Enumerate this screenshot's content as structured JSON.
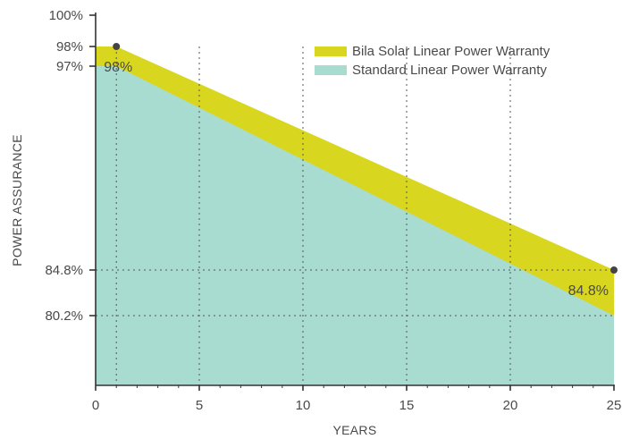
{
  "chart_data": {
    "type": "area",
    "xlabel": "YEARS",
    "ylabel": "POWER ASSURANCE",
    "xlim": [
      0,
      25
    ],
    "ylim": [
      75,
      100
    ],
    "x_ticks": [
      "0",
      "5",
      "10",
      "15",
      "20",
      "25"
    ],
    "y_ticks": [
      {
        "value": 100,
        "label": "100%"
      },
      {
        "value": 98,
        "label": "98%"
      },
      {
        "value": 97,
        "label": "97%"
      },
      {
        "value": 84.8,
        "label": "84.8%"
      },
      {
        "value": 80.2,
        "label": "80.2%"
      }
    ],
    "legend_position": "top-right",
    "series": [
      {
        "name": "Bila Solar Linear Power Warranty",
        "color": "#d9d620",
        "x": [
          0,
          1,
          25
        ],
        "y": [
          98,
          98,
          84.8
        ]
      },
      {
        "name": "Standard Linear Power Warranty",
        "color": "#a8dcd1",
        "x": [
          0,
          1,
          25
        ],
        "y": [
          97,
          97,
          80.2
        ]
      }
    ],
    "markers": [
      {
        "x": 1,
        "y": 98
      },
      {
        "x": 25,
        "y": 84.8
      }
    ],
    "annotations": [
      {
        "text": "98%",
        "x": 1,
        "y": 98
      },
      {
        "text": "84.8%",
        "x": 25,
        "y": 84.8
      }
    ],
    "guide_lines": [
      {
        "axis": "y",
        "value": 84.8
      },
      {
        "axis": "y",
        "value": 80.2
      },
      {
        "axis": "x",
        "value": 1
      },
      {
        "axis": "x",
        "value": 5
      },
      {
        "axis": "x",
        "value": 10
      },
      {
        "axis": "x",
        "value": 15
      },
      {
        "axis": "x",
        "value": 20
      }
    ]
  }
}
